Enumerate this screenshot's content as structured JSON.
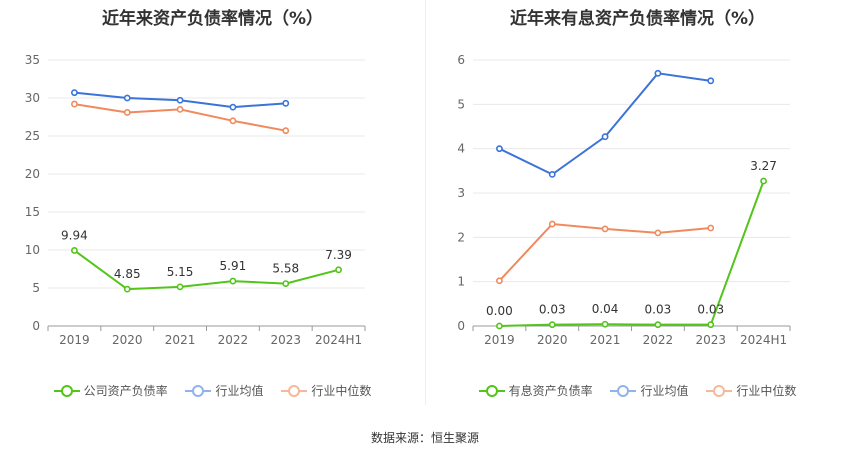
{
  "chart_data": [
    {
      "type": "line",
      "title": "近年来资产负债率情况（%）",
      "categories": [
        "2019",
        "2020",
        "2021",
        "2022",
        "2023",
        "2024H1"
      ],
      "ylim": [
        0,
        35
      ],
      "yticks": [
        0,
        5,
        10,
        15,
        20,
        25,
        30,
        35
      ],
      "grid": true,
      "legend_position": "bottom",
      "series": [
        {
          "name": "公司资产负债率",
          "color": "#52c41a",
          "values": [
            9.94,
            4.85,
            5.15,
            5.91,
            5.58,
            7.39
          ],
          "labels": [
            "9.94",
            "4.85",
            "5.15",
            "5.91",
            "5.58",
            "7.39"
          ]
        },
        {
          "name": "行业均值",
          "color": "#3b73d9",
          "values": [
            30.7,
            30.0,
            29.7,
            28.8,
            29.3,
            null
          ]
        },
        {
          "name": "行业中位数",
          "color": "#f08a5d",
          "values": [
            29.2,
            28.1,
            28.5,
            27.0,
            25.7,
            null
          ]
        }
      ]
    },
    {
      "type": "line",
      "title": "近年来有息资产负债率情况（%）",
      "categories": [
        "2019",
        "2020",
        "2021",
        "2022",
        "2023",
        "2024H1"
      ],
      "ylim": [
        0,
        6
      ],
      "yticks": [
        0,
        1,
        2,
        3,
        4,
        5,
        6
      ],
      "grid": true,
      "legend_position": "bottom",
      "series": [
        {
          "name": "有息资产负债率",
          "color": "#52c41a",
          "values": [
            0.0,
            0.03,
            0.04,
            0.03,
            0.03,
            3.27
          ],
          "labels": [
            "0.00",
            "0.03",
            "0.04",
            "0.03",
            "0.03",
            "3.27"
          ]
        },
        {
          "name": "行业均值",
          "color": "#3b73d9",
          "values": [
            4.0,
            3.42,
            4.27,
            5.7,
            5.53,
            null
          ]
        },
        {
          "name": "行业中位数",
          "color": "#f08a5d",
          "values": [
            1.02,
            2.3,
            2.19,
            2.1,
            2.21,
            null
          ]
        }
      ]
    }
  ],
  "legend_colors": {
    "primary": "#52c41a",
    "mean": "#8fb3ee",
    "median": "#f6b898"
  },
  "footer": {
    "source": "数据来源：恒生聚源"
  }
}
